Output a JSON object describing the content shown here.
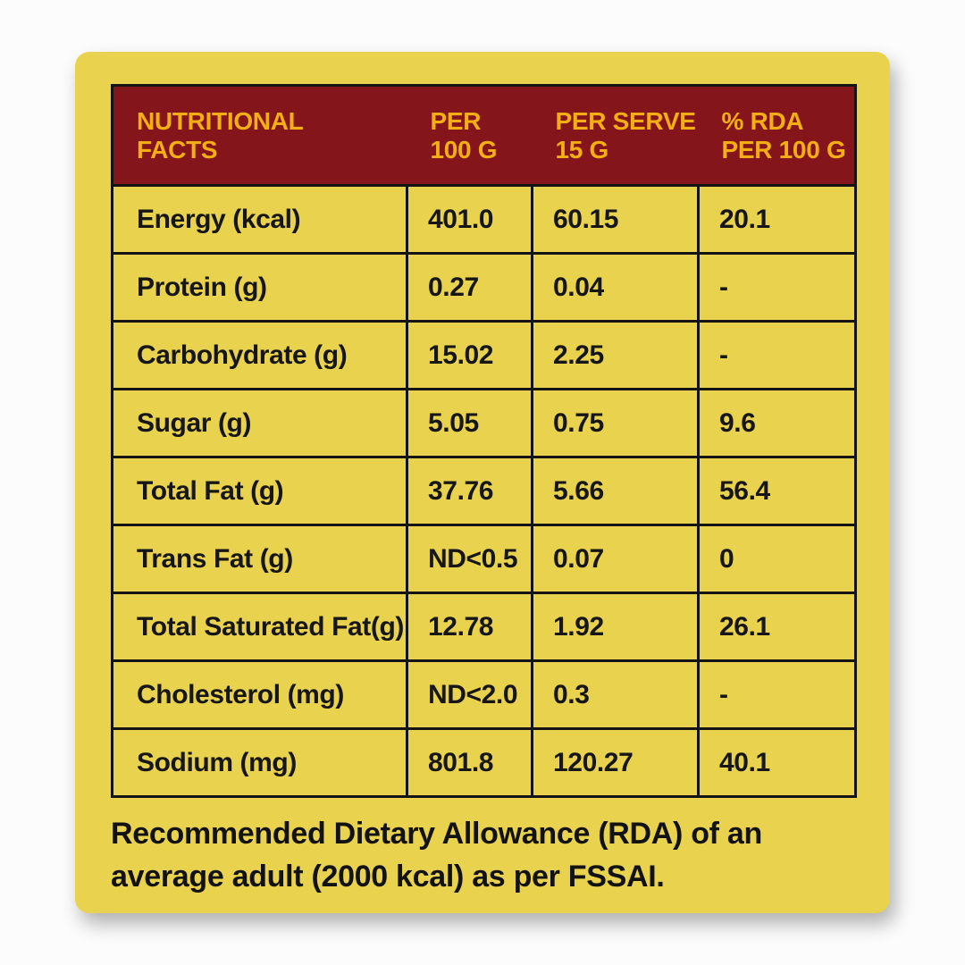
{
  "colors": {
    "card_yellow": "#e9d24e",
    "header_maroon": "#84151a",
    "header_text_gold": "#f2ae14",
    "border_black": "#141414"
  },
  "header": {
    "facts": {
      "line1": "NUTRITIONAL",
      "line2": "FACTS"
    },
    "per100": {
      "line1": "PER",
      "line2": "100 G"
    },
    "perServe": {
      "line1": "PER SERVE",
      "line2": "15 G"
    },
    "rda": {
      "line1": "% RDA",
      "line2": "PER 100 G"
    }
  },
  "rows": [
    {
      "label": "Energy (kcal)",
      "per100g": "401.0",
      "perServe": "60.15",
      "rda": "20.1"
    },
    {
      "label": "Protein (g)",
      "per100g": "0.27",
      "perServe": "0.04",
      "rda": "-"
    },
    {
      "label": "Carbohydrate (g)",
      "per100g": "15.02",
      "perServe": "2.25",
      "rda": "-"
    },
    {
      "label": "Sugar (g)",
      "per100g": "5.05",
      "perServe": "0.75",
      "rda": "9.6"
    },
    {
      "label": "Total Fat (g)",
      "per100g": "37.76",
      "perServe": "5.66",
      "rda": "56.4"
    },
    {
      "label": "Trans Fat (g)",
      "per100g": "ND<0.5",
      "perServe": "0.07",
      "rda": "0"
    },
    {
      "label": "Total Saturated Fat(g)",
      "per100g": "12.78",
      "perServe": "1.92",
      "rda": "26.1"
    },
    {
      "label": "Cholesterol (mg)",
      "per100g": "ND<2.0",
      "perServe": "0.3",
      "rda": "-"
    },
    {
      "label": "Sodium (mg)",
      "per100g": "801.8",
      "perServe": "120.27",
      "rda": "40.1"
    }
  ],
  "footnote": "Recommended Dietary Allowance (RDA) of an average adult (2000 kcal) as per FSSAI."
}
